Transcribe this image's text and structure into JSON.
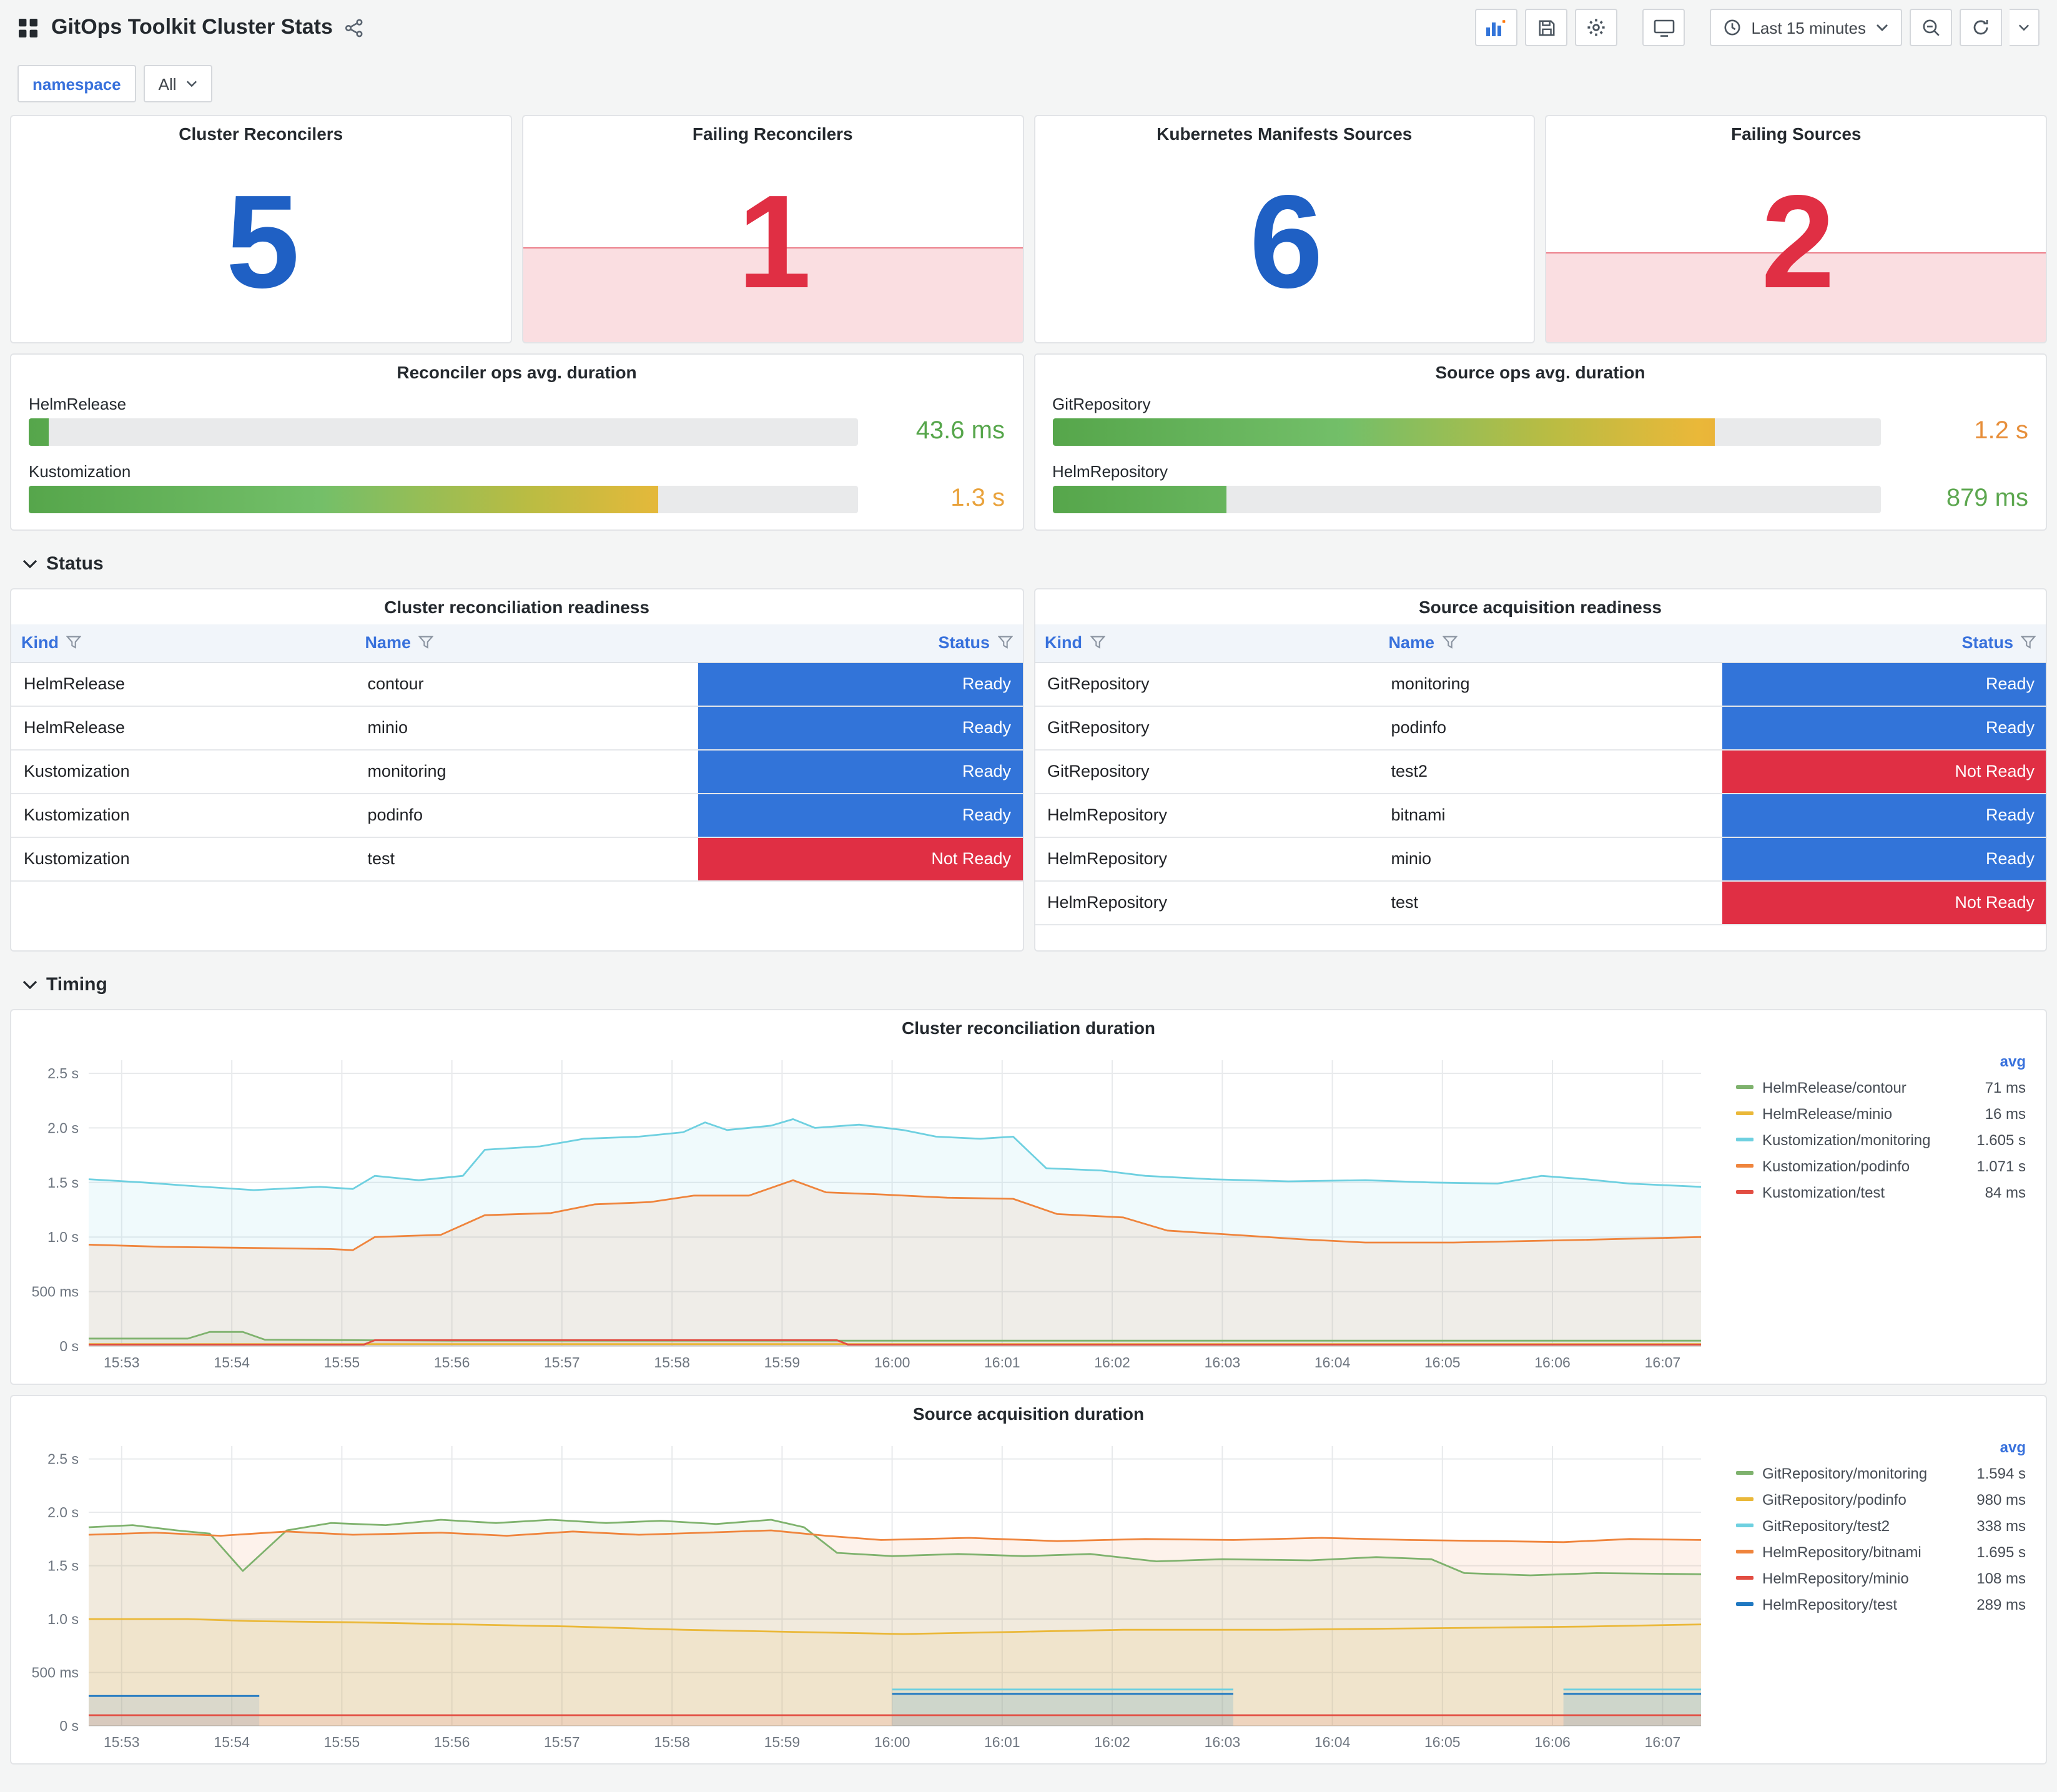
{
  "header": {
    "title": "GitOps Toolkit Cluster Stats",
    "time_range": "Last 15 minutes"
  },
  "variables": {
    "label": "namespace",
    "value": "All"
  },
  "sections": {
    "status": "Status",
    "timing": "Timing"
  },
  "colors": {
    "blue": "#1F60C4",
    "red": "#E02F44",
    "ready": "#3274D9",
    "not_ready": "#E02F44"
  },
  "stats": [
    {
      "title": "Cluster Reconcilers",
      "value": "5",
      "color": "#1F60C4",
      "fill_height_pct": 0
    },
    {
      "title": "Failing Reconcilers",
      "value": "1",
      "color": "#E02F44",
      "fill_height_pct": 42
    },
    {
      "title": "Kubernetes Manifests Sources",
      "value": "6",
      "color": "#1F60C4",
      "fill_height_pct": 0
    },
    {
      "title": "Failing Sources",
      "value": "2",
      "color": "#E02F44",
      "fill_height_pct": 40
    }
  ],
  "gauges": [
    {
      "title": "Reconciler ops avg. duration",
      "items": [
        {
          "label": "HelmRelease",
          "value": "43.6 ms",
          "percent": 2.4,
          "color": "#56A64B"
        },
        {
          "label": "Kustomization",
          "value": "1.3 s",
          "percent": 76,
          "color": "#E9A23B"
        }
      ]
    },
    {
      "title": "Source ops avg. duration",
      "items": [
        {
          "label": "GitRepository",
          "value": "1.2 s",
          "percent": 80,
          "color": "#E78F3B"
        },
        {
          "label": "HelmRepository",
          "value": "879 ms",
          "percent": 21,
          "color": "#5CA74F"
        }
      ]
    }
  ],
  "tables": [
    {
      "title": "Cluster reconciliation readiness",
      "columns": [
        "Kind",
        "Name",
        "Status"
      ],
      "rows": [
        {
          "kind": "HelmRelease",
          "name": "contour",
          "status": "Ready",
          "status_color": "#3274D9"
        },
        {
          "kind": "HelmRelease",
          "name": "minio",
          "status": "Ready",
          "status_color": "#3274D9"
        },
        {
          "kind": "Kustomization",
          "name": "monitoring",
          "status": "Ready",
          "status_color": "#3274D9"
        },
        {
          "kind": "Kustomization",
          "name": "podinfo",
          "status": "Ready",
          "status_color": "#3274D9"
        },
        {
          "kind": "Kustomization",
          "name": "test",
          "status": "Not Ready",
          "status_color": "#E02F44"
        }
      ]
    },
    {
      "title": "Source acquisition readiness",
      "columns": [
        "Kind",
        "Name",
        "Status"
      ],
      "rows": [
        {
          "kind": "GitRepository",
          "name": "monitoring",
          "status": "Ready",
          "status_color": "#3274D9"
        },
        {
          "kind": "GitRepository",
          "name": "podinfo",
          "status": "Ready",
          "status_color": "#3274D9"
        },
        {
          "kind": "GitRepository",
          "name": "test2",
          "status": "Not Ready",
          "status_color": "#E02F44"
        },
        {
          "kind": "HelmRepository",
          "name": "bitnami",
          "status": "Ready",
          "status_color": "#3274D9"
        },
        {
          "kind": "HelmRepository",
          "name": "minio",
          "status": "Ready",
          "status_color": "#3274D9"
        },
        {
          "kind": "HelmRepository",
          "name": "test",
          "status": "Not Ready",
          "status_color": "#E02F44"
        }
      ]
    }
  ],
  "chart_data": [
    {
      "type": "line",
      "title": "Cluster reconciliation duration",
      "legend_header": "avg",
      "x_range": [
        52.7,
        67.35
      ],
      "y_max": 2.62,
      "y_ticks": [
        {
          "v": 0,
          "label": "0 s"
        },
        {
          "v": 0.5,
          "label": "500 ms"
        },
        {
          "v": 1,
          "label": "1.0 s"
        },
        {
          "v": 1.5,
          "label": "1.5 s"
        },
        {
          "v": 2,
          "label": "2.0 s"
        },
        {
          "v": 2.5,
          "label": "2.5 s"
        }
      ],
      "x_ticks": [
        {
          "v": 53,
          "label": "15:53"
        },
        {
          "v": 54,
          "label": "15:54"
        },
        {
          "v": 55,
          "label": "15:55"
        },
        {
          "v": 56,
          "label": "15:56"
        },
        {
          "v": 57,
          "label": "15:57"
        },
        {
          "v": 58,
          "label": "15:58"
        },
        {
          "v": 59,
          "label": "15:59"
        },
        {
          "v": 60,
          "label": "16:00"
        },
        {
          "v": 61,
          "label": "16:01"
        },
        {
          "v": 62,
          "label": "16:02"
        },
        {
          "v": 63,
          "label": "16:03"
        },
        {
          "v": 64,
          "label": "16:04"
        },
        {
          "v": 65,
          "label": "16:05"
        },
        {
          "v": 66,
          "label": "16:06"
        },
        {
          "v": 67,
          "label": "16:07"
        }
      ],
      "series": [
        {
          "name": "HelmRelease/contour",
          "color": "#7EB26D",
          "avg": "71 ms",
          "points": [
            [
              52.7,
              0.07
            ],
            [
              53.6,
              0.07
            ],
            [
              53.8,
              0.13
            ],
            [
              54.1,
              0.13
            ],
            [
              54.3,
              0.06
            ],
            [
              56,
              0.05
            ],
            [
              58,
              0.05
            ],
            [
              60,
              0.05
            ],
            [
              62,
              0.05
            ],
            [
              64,
              0.05
            ],
            [
              66,
              0.05
            ],
            [
              67.35,
              0.05
            ]
          ]
        },
        {
          "name": "HelmRelease/minio",
          "color": "#EAB839",
          "avg": "16 ms",
          "points": [
            [
              52.7,
              0.02
            ],
            [
              67.35,
              0.02
            ]
          ]
        },
        {
          "name": "Kustomization/monitoring",
          "color": "#6ED0E0",
          "avg": "1.605 s",
          "points": [
            [
              52.7,
              1.53
            ],
            [
              53.2,
              1.5
            ],
            [
              53.6,
              1.47
            ],
            [
              54.2,
              1.43
            ],
            [
              54.8,
              1.46
            ],
            [
              55.1,
              1.44
            ],
            [
              55.3,
              1.56
            ],
            [
              55.7,
              1.52
            ],
            [
              56.1,
              1.56
            ],
            [
              56.3,
              1.8
            ],
            [
              56.8,
              1.83
            ],
            [
              57.2,
              1.9
            ],
            [
              57.7,
              1.92
            ],
            [
              58.1,
              1.96
            ],
            [
              58.3,
              2.05
            ],
            [
              58.5,
              1.98
            ],
            [
              58.9,
              2.02
            ],
            [
              59.1,
              2.08
            ],
            [
              59.3,
              2.0
            ],
            [
              59.7,
              2.03
            ],
            [
              60.1,
              1.98
            ],
            [
              60.4,
              1.92
            ],
            [
              60.8,
              1.9
            ],
            [
              61.1,
              1.92
            ],
            [
              61.4,
              1.63
            ],
            [
              61.9,
              1.61
            ],
            [
              62.3,
              1.56
            ],
            [
              62.9,
              1.53
            ],
            [
              63.6,
              1.51
            ],
            [
              64.3,
              1.52
            ],
            [
              64.9,
              1.5
            ],
            [
              65.5,
              1.49
            ],
            [
              65.9,
              1.56
            ],
            [
              66.3,
              1.53
            ],
            [
              66.7,
              1.49
            ],
            [
              67.35,
              1.46
            ]
          ]
        },
        {
          "name": "Kustomization/podinfo",
          "color": "#EF843C",
          "avg": "1.071 s",
          "points": [
            [
              52.7,
              0.93
            ],
            [
              53.4,
              0.91
            ],
            [
              54.2,
              0.9
            ],
            [
              54.9,
              0.89
            ],
            [
              55.1,
              0.88
            ],
            [
              55.3,
              1.0
            ],
            [
              55.9,
              1.02
            ],
            [
              56.3,
              1.2
            ],
            [
              56.9,
              1.22
            ],
            [
              57.3,
              1.3
            ],
            [
              57.8,
              1.32
            ],
            [
              58.2,
              1.38
            ],
            [
              58.7,
              1.38
            ],
            [
              59.1,
              1.52
            ],
            [
              59.4,
              1.41
            ],
            [
              59.9,
              1.39
            ],
            [
              60.5,
              1.36
            ],
            [
              61.1,
              1.35
            ],
            [
              61.5,
              1.21
            ],
            [
              62.1,
              1.18
            ],
            [
              62.5,
              1.06
            ],
            [
              63.1,
              1.02
            ],
            [
              63.7,
              0.98
            ],
            [
              64.3,
              0.95
            ],
            [
              65.1,
              0.95
            ],
            [
              66.1,
              0.97
            ],
            [
              67.35,
              1.0
            ]
          ]
        },
        {
          "name": "Kustomization/test",
          "color": "#E24D42",
          "avg": "84 ms",
          "points": [
            [
              52.7,
              0.015
            ],
            [
              55.2,
              0.015
            ],
            [
              55.3,
              0.055
            ],
            [
              59.5,
              0.055
            ],
            [
              59.6,
              0.015
            ],
            [
              67.35,
              0.015
            ]
          ]
        }
      ]
    },
    {
      "type": "line",
      "title": "Source acquisition duration",
      "legend_header": "avg",
      "x_range": [
        52.7,
        67.35
      ],
      "y_max": 2.62,
      "y_ticks": [
        {
          "v": 0,
          "label": "0 s"
        },
        {
          "v": 0.5,
          "label": "500 ms"
        },
        {
          "v": 1,
          "label": "1.0 s"
        },
        {
          "v": 1.5,
          "label": "1.5 s"
        },
        {
          "v": 2,
          "label": "2.0 s"
        },
        {
          "v": 2.5,
          "label": "2.5 s"
        }
      ],
      "x_ticks": [
        {
          "v": 53,
          "label": "15:53"
        },
        {
          "v": 54,
          "label": "15:54"
        },
        {
          "v": 55,
          "label": "15:55"
        },
        {
          "v": 56,
          "label": "15:56"
        },
        {
          "v": 57,
          "label": "15:57"
        },
        {
          "v": 58,
          "label": "15:58"
        },
        {
          "v": 59,
          "label": "15:59"
        },
        {
          "v": 60,
          "label": "16:00"
        },
        {
          "v": 61,
          "label": "16:01"
        },
        {
          "v": 62,
          "label": "16:02"
        },
        {
          "v": 63,
          "label": "16:03"
        },
        {
          "v": 64,
          "label": "16:04"
        },
        {
          "v": 65,
          "label": "16:05"
        },
        {
          "v": 66,
          "label": "16:06"
        },
        {
          "v": 67,
          "label": "16:07"
        }
      ],
      "series": [
        {
          "name": "GitRepository/monitoring",
          "color": "#7EB26D",
          "avg": "1.594 s",
          "points": [
            [
              52.7,
              1.86
            ],
            [
              53.1,
              1.88
            ],
            [
              53.5,
              1.83
            ],
            [
              53.8,
              1.8
            ],
            [
              54.1,
              1.45
            ],
            [
              54.5,
              1.83
            ],
            [
              54.9,
              1.9
            ],
            [
              55.4,
              1.88
            ],
            [
              55.9,
              1.93
            ],
            [
              56.4,
              1.9
            ],
            [
              56.9,
              1.93
            ],
            [
              57.4,
              1.9
            ],
            [
              57.9,
              1.92
            ],
            [
              58.4,
              1.89
            ],
            [
              58.9,
              1.93
            ],
            [
              59.2,
              1.86
            ],
            [
              59.5,
              1.62
            ],
            [
              60,
              1.59
            ],
            [
              60.6,
              1.61
            ],
            [
              61.2,
              1.59
            ],
            [
              61.8,
              1.61
            ],
            [
              62.4,
              1.54
            ],
            [
              63,
              1.56
            ],
            [
              63.8,
              1.55
            ],
            [
              64.4,
              1.58
            ],
            [
              64.9,
              1.56
            ],
            [
              65.2,
              1.43
            ],
            [
              65.8,
              1.41
            ],
            [
              66.4,
              1.43
            ],
            [
              67.35,
              1.42
            ]
          ]
        },
        {
          "name": "GitRepository/podinfo",
          "color": "#EAB839",
          "avg": "980 ms",
          "points": [
            [
              52.7,
              1.0
            ],
            [
              53.6,
              1.0
            ],
            [
              54.2,
              0.98
            ],
            [
              55.1,
              0.97
            ],
            [
              56.1,
              0.95
            ],
            [
              57.1,
              0.93
            ],
            [
              58.1,
              0.9
            ],
            [
              59.1,
              0.88
            ],
            [
              60.1,
              0.86
            ],
            [
              61.1,
              0.88
            ],
            [
              62.1,
              0.9
            ],
            [
              63.5,
              0.9
            ],
            [
              64.5,
              0.91
            ],
            [
              65.5,
              0.92
            ],
            [
              66.3,
              0.93
            ],
            [
              67.35,
              0.95
            ]
          ]
        },
        {
          "name": "GitRepository/test2",
          "color": "#6ED0E0",
          "avg": "338 ms",
          "points": [
            [
              60,
              0.34
            ],
            [
              63.1,
              0.34
            ],
            null,
            [
              66.1,
              0.34
            ],
            [
              67.35,
              0.34
            ]
          ]
        },
        {
          "name": "HelmRepository/bitnami",
          "color": "#EF843C",
          "avg": "1.695 s",
          "points": [
            [
              52.7,
              1.79
            ],
            [
              53.3,
              1.81
            ],
            [
              53.9,
              1.78
            ],
            [
              54.5,
              1.82
            ],
            [
              55.1,
              1.79
            ],
            [
              55.9,
              1.81
            ],
            [
              56.5,
              1.78
            ],
            [
              57.1,
              1.82
            ],
            [
              57.7,
              1.79
            ],
            [
              58.3,
              1.81
            ],
            [
              58.9,
              1.83
            ],
            [
              59.4,
              1.78
            ],
            [
              59.9,
              1.74
            ],
            [
              60.7,
              1.76
            ],
            [
              61.5,
              1.73
            ],
            [
              62.3,
              1.75
            ],
            [
              63.1,
              1.74
            ],
            [
              63.9,
              1.76
            ],
            [
              64.7,
              1.74
            ],
            [
              65.5,
              1.73
            ],
            [
              66.1,
              1.72
            ],
            [
              66.7,
              1.75
            ],
            [
              67.35,
              1.74
            ]
          ]
        },
        {
          "name": "HelmRepository/minio",
          "color": "#E24D42",
          "avg": "108 ms",
          "points": [
            [
              52.7,
              0.1
            ],
            [
              67.35,
              0.1
            ]
          ]
        },
        {
          "name": "HelmRepository/test",
          "color": "#1F78C1",
          "avg": "289 ms",
          "points": [
            [
              52.7,
              0.28
            ],
            [
              54.25,
              0.28
            ],
            null,
            [
              60,
              0.3
            ],
            [
              63.1,
              0.3
            ],
            null,
            [
              66.1,
              0.3
            ],
            [
              67.35,
              0.3
            ]
          ]
        }
      ]
    }
  ]
}
